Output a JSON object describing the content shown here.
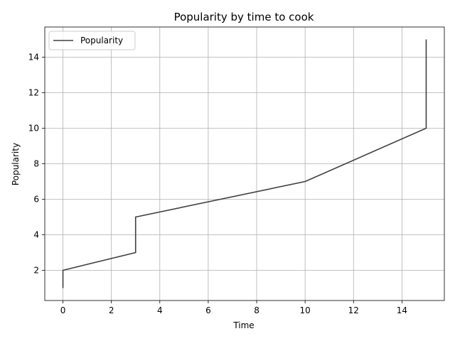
{
  "chart_data": {
    "type": "line",
    "title": "Popularity by time to cook",
    "xlabel": "Time",
    "ylabel": "Popularity",
    "xlim": [
      -0.75,
      15.75
    ],
    "ylim": [
      0.3,
      15.7
    ],
    "xticks": [
      0,
      2,
      4,
      6,
      8,
      10,
      12,
      14
    ],
    "yticks": [
      2,
      4,
      6,
      8,
      10,
      12,
      14
    ],
    "grid": true,
    "legend_position": "top-left",
    "series": [
      {
        "name": "Popularity",
        "color": "#404040",
        "x": [
          0,
          0,
          3,
          3,
          10,
          15,
          15
        ],
        "y": [
          1,
          2,
          3,
          5,
          7,
          10,
          15
        ]
      }
    ]
  }
}
